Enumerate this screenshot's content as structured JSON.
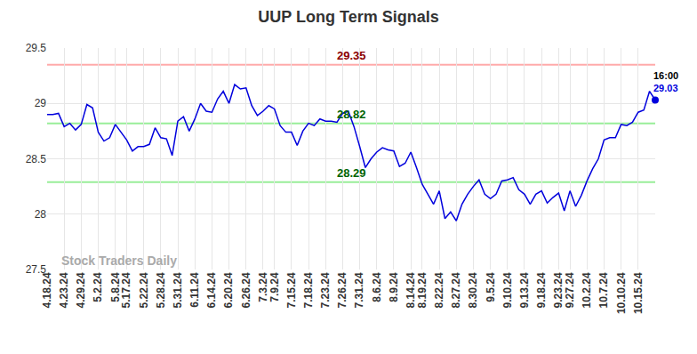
{
  "chart_data": {
    "type": "line",
    "title": "UUP Long Term Signals",
    "watermark": "Stock Traders Daily",
    "color": "#0000dd",
    "grid": true,
    "ylim": [
      27.5,
      29.5
    ],
    "yticks": [
      27.5,
      28,
      28.5,
      29,
      29.5
    ],
    "categories": [
      "4.18.24",
      null,
      null,
      "4.23.24",
      null,
      null,
      "4.29.24",
      null,
      null,
      "5.2.24",
      null,
      null,
      "5.8.24",
      null,
      "5.17.24",
      null,
      null,
      "5.22.24",
      null,
      null,
      "5.28.24",
      null,
      null,
      "5.31.24",
      null,
      null,
      "6.11.24",
      null,
      null,
      "6.14.24",
      null,
      null,
      "6.20.24",
      null,
      null,
      "6.26.24",
      null,
      null,
      "7.3.24",
      null,
      "7.9.24",
      null,
      null,
      "7.15.24",
      null,
      null,
      "7.18.24",
      null,
      null,
      "7.23.24",
      null,
      null,
      "7.26.24",
      null,
      null,
      "7.31.24",
      null,
      null,
      "8.6.24",
      null,
      null,
      "8.9.24",
      null,
      null,
      "8.14.24",
      null,
      "8.19.24",
      null,
      null,
      "8.22.24",
      null,
      null,
      "8.27.24",
      null,
      null,
      "8.30.24",
      null,
      null,
      "9.5.24",
      null,
      null,
      "9.10.24",
      null,
      null,
      "9.13.24",
      null,
      null,
      "9.18.24",
      null,
      null,
      "9.23.24",
      null,
      "9.27.24",
      null,
      null,
      "10.2.24",
      null,
      null,
      "10.7.24",
      null,
      null,
      "10.10.24",
      null,
      null,
      "10.15.24",
      null,
      null,
      null
    ],
    "values": [
      28.9,
      28.9,
      28.91,
      28.79,
      28.82,
      28.76,
      28.81,
      28.99,
      28.96,
      28.74,
      28.66,
      28.69,
      28.81,
      28.74,
      28.67,
      28.57,
      28.61,
      28.61,
      28.63,
      28.78,
      28.69,
      28.68,
      28.53,
      28.84,
      28.88,
      28.75,
      28.86,
      29.0,
      28.93,
      28.92,
      29.04,
      29.11,
      29.0,
      29.17,
      29.13,
      29.14,
      28.98,
      28.89,
      28.93,
      28.98,
      28.95,
      28.8,
      28.74,
      28.74,
      28.62,
      28.75,
      28.82,
      28.8,
      28.86,
      28.84,
      28.84,
      28.83,
      28.91,
      28.93,
      28.79,
      28.61,
      28.42,
      28.5,
      28.56,
      28.6,
      28.58,
      28.57,
      28.43,
      28.46,
      28.56,
      28.42,
      28.27,
      28.18,
      28.09,
      28.21,
      27.96,
      28.02,
      27.94,
      28.09,
      28.18,
      28.25,
      28.31,
      28.18,
      28.14,
      28.18,
      28.3,
      28.31,
      28.33,
      28.22,
      28.18,
      28.09,
      28.18,
      28.21,
      28.1,
      28.15,
      28.19,
      28.03,
      28.21,
      28.07,
      28.17,
      28.3,
      28.41,
      28.5,
      28.67,
      28.69,
      28.69,
      28.81,
      28.8,
      28.83,
      28.92,
      28.94,
      29.11,
      29.03
    ],
    "signals": [
      {
        "value": 29.35,
        "color": "#ffaaaa"
      },
      {
        "value": 28.82,
        "color": "#99ee99"
      },
      {
        "value": 28.29,
        "color": "#99ee99"
      }
    ],
    "last_point": {
      "time": "16:00",
      "value": 29.03
    }
  }
}
